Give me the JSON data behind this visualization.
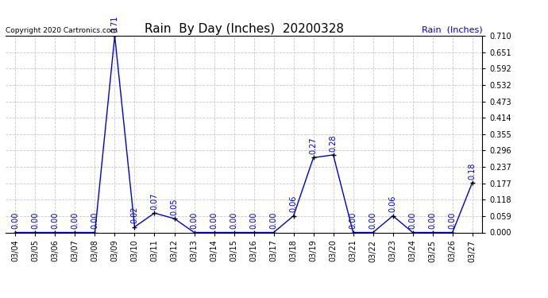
{
  "title": "Rain  By Day (Inches)  20200328",
  "copyright_text": "Copyright 2020 Cartronics.com",
  "legend_label": "Rain  (Inches)",
  "dates": [
    "03/04",
    "03/05",
    "03/06",
    "03/07",
    "03/08",
    "03/09",
    "03/10",
    "03/11",
    "03/12",
    "03/13",
    "03/14",
    "03/15",
    "03/16",
    "03/17",
    "03/18",
    "03/19",
    "03/20",
    "03/21",
    "03/22",
    "03/23",
    "03/24",
    "03/25",
    "03/26",
    "03/27"
  ],
  "values": [
    0.0,
    0.0,
    0.0,
    0.0,
    0.0,
    0.71,
    0.02,
    0.07,
    0.05,
    0.0,
    0.0,
    0.0,
    0.0,
    0.0,
    0.06,
    0.27,
    0.28,
    0.0,
    0.0,
    0.06,
    0.0,
    0.0,
    0.0,
    0.18
  ],
  "line_color": "#0000cc",
  "marker_color": "#000000",
  "label_color": "#0000cc",
  "title_color": "#000000",
  "background_color": "#ffffff",
  "grid_color": "#c8c8c8",
  "ylim": [
    0.0,
    0.71
  ],
  "yticks": [
    0.0,
    0.059,
    0.118,
    0.177,
    0.237,
    0.296,
    0.355,
    0.414,
    0.473,
    0.532,
    0.592,
    0.651,
    0.71
  ],
  "title_fontsize": 11,
  "label_fontsize": 7,
  "tick_fontsize": 7,
  "copyright_fontsize": 6.5,
  "legend_fontsize": 8
}
